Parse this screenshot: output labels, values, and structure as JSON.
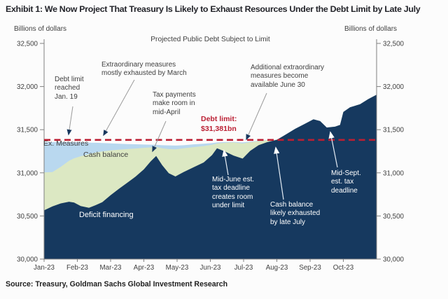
{
  "header": {
    "title": "Exhibit 1: We Now Project That Treasury Is Likely to Exhaust Resources Under the Debt Limit by Late July",
    "units_left": "Billions of dollars",
    "units_right": "Billions of dollars"
  },
  "source": "Source: Treasury, Goldman Sachs Global Investment Research",
  "colors": {
    "deficit_financing": "#16395f",
    "cash_balance": "#dce8c3",
    "ex_measures": "#b9d8ef",
    "debt_limit_red": "#bb1f33",
    "axis_gray": "#808080",
    "annotation_gray": "#3f3f3f"
  },
  "chart_data": {
    "type": "area",
    "stacked": true,
    "title": "Projected Public Debt Subject to Limit",
    "ylabel": "Billions of dollars",
    "ylim": [
      30000,
      32500
    ],
    "y_ticks": [
      32500,
      32000,
      31500,
      31000,
      30500,
      30000
    ],
    "y_tick_labels": [
      "32,500",
      "32,000",
      "31,500",
      "31,000",
      "30,500",
      "30,000"
    ],
    "x_tick_labels": [
      "Jan-23",
      "Feb-23",
      "Mar-23",
      "Apr-23",
      "May-23",
      "Jun-23",
      "Jul-23",
      "Aug-23",
      "Sep-23",
      "Oct-23"
    ],
    "x_months_domain": [
      0,
      10
    ],
    "grid": false,
    "legend_position": "labels-on-areas",
    "debt_limit": {
      "value": 31381,
      "label": "Debt limit:\n$31,381bn"
    },
    "note": "series values are cumulative stack tops in billions of dollars; x in months since Jan-1-2023",
    "x_months": [
      0,
      0.25,
      0.5,
      0.75,
      0.9,
      1.1,
      1.35,
      1.55,
      1.75,
      2.0,
      2.25,
      2.5,
      2.75,
      3.0,
      3.2,
      3.37,
      3.55,
      3.75,
      3.95,
      4.2,
      4.5,
      4.8,
      5.05,
      5.2,
      5.45,
      5.7,
      5.97,
      6.2,
      6.45,
      6.7,
      7.0,
      7.25,
      7.55,
      7.85,
      8.1,
      8.3,
      8.5,
      8.75,
      8.9,
      9.0,
      9.2,
      9.5,
      9.75,
      10.0
    ],
    "series": [
      {
        "name": "Deficit financing",
        "color": "#16395f",
        "stack_top_values": [
          30565,
          30610,
          30645,
          30665,
          30655,
          30615,
          30595,
          30625,
          30660,
          30740,
          30815,
          30885,
          30955,
          31040,
          31130,
          31195,
          31090,
          30995,
          30958,
          31010,
          31065,
          31120,
          31205,
          31285,
          31245,
          31200,
          31165,
          31255,
          31320,
          31355,
          31383,
          31440,
          31510,
          31570,
          31620,
          31600,
          31525,
          31535,
          31555,
          31705,
          31760,
          31795,
          31855,
          31905
        ]
      },
      {
        "name": "Cash balance",
        "color": "#dce8c3",
        "stack_top_values": [
          31005,
          31008,
          31070,
          31140,
          31168,
          31192,
          31215,
          31235,
          31248,
          31260,
          31268,
          31275,
          31282,
          31290,
          31295,
          31300,
          31285,
          31275,
          31272,
          31285,
          31298,
          31310,
          31325,
          31340,
          31348,
          31352,
          31340,
          31355,
          31368,
          31376,
          31383,
          31440,
          31510,
          31570,
          31620,
          31600,
          31525,
          31535,
          31555,
          31705,
          31760,
          31795,
          31855,
          31905
        ]
      },
      {
        "name": "Ex. Measures",
        "color": "#b9d8ef",
        "stack_top_values": [
          31355,
          31356,
          31356,
          31355,
          31354,
          31352,
          31350,
          31348,
          31346,
          31342,
          31338,
          31334,
          31331,
          31328,
          31326,
          31325,
          31320,
          31318,
          31316,
          31320,
          31330,
          31338,
          31344,
          31352,
          31356,
          31358,
          31352,
          31362,
          31372,
          31379,
          31383,
          31440,
          31510,
          31570,
          31620,
          31600,
          31525,
          31535,
          31555,
          31705,
          31760,
          31795,
          31855,
          31905
        ]
      }
    ],
    "annotations": {
      "debt_limit_reached": {
        "text": "Debt limit\nreached\nJan. 19"
      },
      "extraordinary_measures": {
        "text": "Extraordinary measures\nmostly exhausted by March"
      },
      "tax_payments": {
        "text": "Tax payments\nmake room in\nmid-April"
      },
      "debt_limit_label": {
        "text": "Debt limit:\n$31,381bn"
      },
      "additional_em": {
        "text": "Additional extraordinary\nmeasures become\navailable June 30"
      },
      "mid_june": {
        "text": "Mid-June est.\ntax deadline\ncreates room\nunder limit"
      },
      "cash_exhausted": {
        "text": "Cash balance\nlikely exhausted\nby late July"
      },
      "mid_sept": {
        "text": "Mid-Sept.\nest. tax\ndeadline"
      }
    },
    "area_labels": {
      "ex_measures": "Ex. Measures",
      "cash_balance": "Cash balance",
      "deficit_financing": "Deficit financing"
    }
  }
}
